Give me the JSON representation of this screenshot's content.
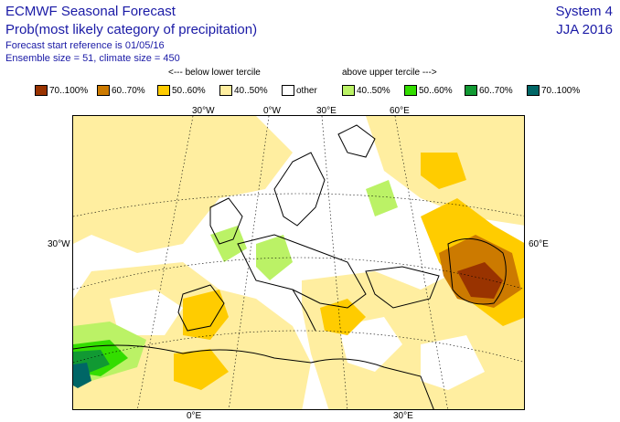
{
  "header": {
    "title_line1": "ECMWF Seasonal Forecast",
    "title_line2": "Prob(most likely category of precipitation)",
    "forecast_ref": "Forecast start reference is 01/05/16",
    "ensemble": "Ensemble size = 51, climate size = 450",
    "system": "System 4",
    "season": "JJA 2016"
  },
  "legend": {
    "below_label": "<--- below lower tercile",
    "above_label": "above upper tercile --->",
    "items": [
      {
        "label": "70..100%",
        "color": "#993300"
      },
      {
        "label": "60..70%",
        "color": "#cc7a00"
      },
      {
        "label": "50..60%",
        "color": "#ffcc00"
      },
      {
        "label": "40..50%",
        "color": "#ffeea0"
      },
      {
        "label": "other",
        "color": "#ffffff"
      },
      {
        "label": "40..50%",
        "color": "#bbf266"
      },
      {
        "label": "50..60%",
        "color": "#33dd00"
      },
      {
        "label": "60..70%",
        "color": "#119933"
      },
      {
        "label": "70..100%",
        "color": "#006666"
      }
    ]
  },
  "map": {
    "top_labels": [
      "30°W",
      "0°W",
      "30°E",
      "60°E"
    ],
    "left_label": "30°W",
    "right_label": "60°E",
    "bottom_labels": [
      "0°E",
      "30°E"
    ]
  }
}
